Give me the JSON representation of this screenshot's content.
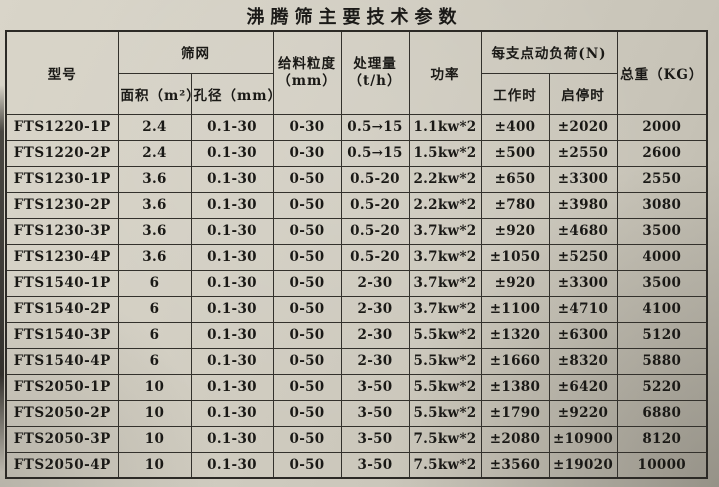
{
  "title": "沸腾筛主要技术参数",
  "table": {
    "headers": {
      "model": "型号",
      "screen": "筛网",
      "area": "面积（m²）",
      "aperture": "孔径（mm）",
      "feed_line1": "给料粒度",
      "feed_line2": "（mm）",
      "capacity_line1": "处理量",
      "capacity_line2": "（t/h）",
      "power": "功率",
      "load": "每支点动负荷(N)",
      "working": "工作时",
      "startstop": "启停时",
      "weight": "总重（KG）"
    },
    "rows": [
      {
        "model": "FTS1220-1P",
        "area": "2.4",
        "aperture": "0.1-30",
        "feed": "0-30",
        "capacity": "0.5→15",
        "power": "1.1kw*2",
        "working": "±400",
        "startstop": "±2020",
        "weight": "2000"
      },
      {
        "model": "FTS1220-2P",
        "area": "2.4",
        "aperture": "0.1-30",
        "feed": "0-30",
        "capacity": "0.5→15",
        "power": "1.5kw*2",
        "working": "±500",
        "startstop": "±2550",
        "weight": "2600"
      },
      {
        "model": "FTS1230-1P",
        "area": "3.6",
        "aperture": "0.1-30",
        "feed": "0-50",
        "capacity": "0.5-20",
        "power": "2.2kw*2",
        "working": "±650",
        "startstop": "±3300",
        "weight": "2550"
      },
      {
        "model": "FTS1230-2P",
        "area": "3.6",
        "aperture": "0.1-30",
        "feed": "0-50",
        "capacity": "0.5-20",
        "power": "2.2kw*2",
        "working": "±780",
        "startstop": "±3980",
        "weight": "3080"
      },
      {
        "model": "FTS1230-3P",
        "area": "3.6",
        "aperture": "0.1-30",
        "feed": "0-50",
        "capacity": "0.5-20",
        "power": "3.7kw*2",
        "working": "±920",
        "startstop": "±4680",
        "weight": "3500"
      },
      {
        "model": "FTS1230-4P",
        "area": "3.6",
        "aperture": "0.1-30",
        "feed": "0-50",
        "capacity": "0.5-20",
        "power": "3.7kw*2",
        "working": "±1050",
        "startstop": "±5250",
        "weight": "4000"
      },
      {
        "model": "FTS1540-1P",
        "area": "6",
        "aperture": "0.1-30",
        "feed": "0-50",
        "capacity": "2-30",
        "power": "3.7kw*2",
        "working": "±920",
        "startstop": "±3300",
        "weight": "3500"
      },
      {
        "model": "FTS1540-2P",
        "area": "6",
        "aperture": "0.1-30",
        "feed": "0-50",
        "capacity": "2-30",
        "power": "3.7kw*2",
        "working": "±1100",
        "startstop": "±4710",
        "weight": "4100"
      },
      {
        "model": "FTS1540-3P",
        "area": "6",
        "aperture": "0.1-30",
        "feed": "0-50",
        "capacity": "2-30",
        "power": "5.5kw*2",
        "working": "±1320",
        "startstop": "±6300",
        "weight": "5120"
      },
      {
        "model": "FTS1540-4P",
        "area": "6",
        "aperture": "0.1-30",
        "feed": "0-50",
        "capacity": "2-30",
        "power": "5.5kw*2",
        "working": "±1660",
        "startstop": "±8320",
        "weight": "5880"
      },
      {
        "model": "FTS2050-1P",
        "area": "10",
        "aperture": "0.1-30",
        "feed": "0-50",
        "capacity": "3-50",
        "power": "5.5kw*2",
        "working": "±1380",
        "startstop": "±6420",
        "weight": "5220"
      },
      {
        "model": "FTS2050-2P",
        "area": "10",
        "aperture": "0.1-30",
        "feed": "0-50",
        "capacity": "3-50",
        "power": "5.5kw*2",
        "working": "±1790",
        "startstop": "±9220",
        "weight": "6880"
      },
      {
        "model": "FTS2050-3P",
        "area": "10",
        "aperture": "0.1-30",
        "feed": "0-50",
        "capacity": "3-50",
        "power": "7.5kw*2",
        "working": "±2080",
        "startstop": "±10900",
        "weight": "8120"
      },
      {
        "model": "FTS2050-4P",
        "area": "10",
        "aperture": "0.1-30",
        "feed": "0-50",
        "capacity": "3-50",
        "power": "7.5kw*2",
        "working": "±3560",
        "startstop": "±19020",
        "weight": "10000"
      }
    ]
  }
}
